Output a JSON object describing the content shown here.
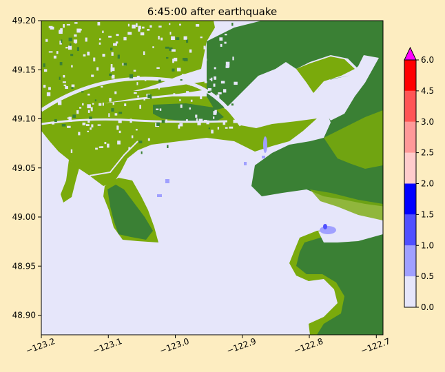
{
  "chart_data": {
    "type": "heatmap",
    "title": "6:45:00 after earthquake",
    "xlabel": "",
    "ylabel": "",
    "xlim": [
      -123.2,
      -122.69
    ],
    "ylim": [
      48.88,
      49.2
    ],
    "x_ticks": [
      {
        "value": -123.2,
        "label": "−123.2"
      },
      {
        "value": -123.1,
        "label": "−123.1"
      },
      {
        "value": -123.0,
        "label": "−123.0"
      },
      {
        "value": -122.9,
        "label": "−122.9"
      },
      {
        "value": -122.8,
        "label": "−122.8"
      },
      {
        "value": -122.7,
        "label": "−122.7"
      }
    ],
    "y_ticks": [
      {
        "value": 49.2,
        "label": "49.20"
      },
      {
        "value": 49.15,
        "label": "49.15"
      },
      {
        "value": 49.1,
        "label": "49.10"
      },
      {
        "value": 49.05,
        "label": "49.05"
      },
      {
        "value": 49.0,
        "label": "49.00"
      },
      {
        "value": 48.95,
        "label": "48.95"
      },
      {
        "value": 48.9,
        "label": "48.90"
      }
    ],
    "grid": false,
    "colorbar": {
      "placement": "right",
      "extend": "max",
      "extend_color": "#ff00ff",
      "bins": [
        {
          "from": 0.0,
          "to": 0.5,
          "color": "#e6e6fa"
        },
        {
          "from": 0.5,
          "to": 1.0,
          "color": "#a0a0ff"
        },
        {
          "from": 1.0,
          "to": 1.5,
          "color": "#5050ff"
        },
        {
          "from": 1.5,
          "to": 2.0,
          "color": "#0000ff"
        },
        {
          "from": 2.0,
          "to": 2.5,
          "color": "#ffcccc"
        },
        {
          "from": 2.5,
          "to": 3.0,
          "color": "#ff9999"
        },
        {
          "from": 3.0,
          "to": 4.5,
          "color": "#ff5555"
        },
        {
          "from": 4.5,
          "to": 6.0,
          "color": "#ff0000"
        }
      ],
      "ticks": [
        {
          "value": 0.0,
          "label": "0.0"
        },
        {
          "value": 0.5,
          "label": "0.5"
        },
        {
          "value": 1.0,
          "label": "1.0"
        },
        {
          "value": 1.5,
          "label": "1.5"
        },
        {
          "value": 2.0,
          "label": "2.0"
        },
        {
          "value": 2.5,
          "label": "2.5"
        },
        {
          "value": 3.0,
          "label": "3.0"
        },
        {
          "value": 4.5,
          "label": "4.5"
        },
        {
          "value": 6.0,
          "label": "6.0"
        }
      ]
    },
    "water_color": "#e6e6fa",
    "land_colors": {
      "dark": "#3a8034",
      "light": "#7aaa0c"
    },
    "flood_colors": [
      "#a0a0ff",
      "#5050ff"
    ]
  }
}
